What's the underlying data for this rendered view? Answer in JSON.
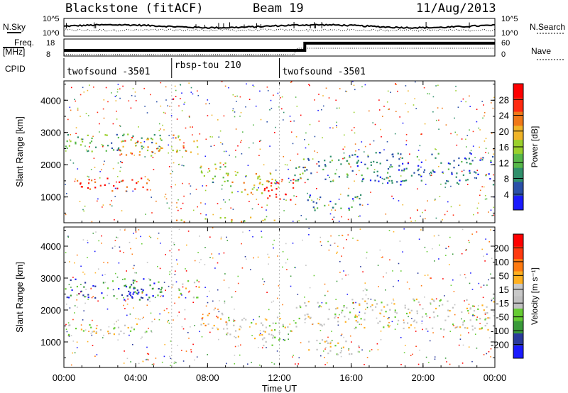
{
  "header": {
    "title": "Blackstone (fitACF)",
    "beam": "Beam 19",
    "date": "11/Aug/2013"
  },
  "colors": {
    "power_scale": [
      "#1a1aff",
      "#2a50a8",
      "#2f8f6b",
      "#57b84a",
      "#9ad02c",
      "#f0b428",
      "#f07818",
      "#ff2a10",
      "#ff0000"
    ],
    "velocity_scale": [
      "#1a1aff",
      "#2a3a9c",
      "#3a9a3a",
      "#66cc33",
      "#c0c0c0",
      "#c8c8c8",
      "#ffb020",
      "#ff7a10",
      "#ff3a10",
      "#ff0000"
    ]
  },
  "chart_data": [
    {
      "type": "line",
      "panel": "noise",
      "ylabel_left": "N.Sky",
      "ylabel_right": "N.Search",
      "yticks_left": [
        "10^5",
        "10^0"
      ],
      "yticks_right": [
        "10^5",
        "10^0"
      ]
    },
    {
      "type": "line",
      "panel": "frequency-nave",
      "ylabel_left": "Freq. [MHz]",
      "ylabel_right": "Nave",
      "yticks_left": [
        "18",
        "8"
      ],
      "yticks_right": [
        "60",
        "0"
      ],
      "series": [
        {
          "name": "Freq.",
          "x": [
            "00:00",
            "00:35",
            "01:10",
            "01:45",
            "02:20",
            "02:55",
            "03:30",
            "04:05",
            "04:40",
            "05:15",
            "05:50",
            "06:25",
            "07:00",
            "07:35",
            "08:10",
            "08:45",
            "09:20",
            "09:55",
            "10:30",
            "11:05",
            "11:40",
            "12:15",
            "12:50",
            "13:25",
            "14:00",
            "14:35",
            "15:10",
            "15:45",
            "16:20",
            "16:55",
            "17:30",
            "18:05",
            "18:40",
            "19:15",
            "19:50",
            "20:25",
            "21:00",
            "21:35",
            "22:10",
            "22:45",
            "23:20",
            "23:55"
          ],
          "values": [
            10.5,
            10.5,
            10.5,
            10.5,
            10.5,
            10.5,
            10.5,
            10.5,
            10.5,
            10.5,
            10.5,
            10.5,
            10.5,
            10.5,
            10.5,
            10.5,
            10.5,
            10.5,
            10.5,
            10.5,
            10.5,
            10.5,
            10.5,
            16.8,
            16.8,
            16.8,
            16.8,
            16.8,
            16.8,
            16.8,
            16.8,
            16.8,
            16.8,
            16.8,
            16.8,
            16.8,
            16.8,
            16.8,
            16.8,
            16.8,
            16.8,
            16.8
          ]
        }
      ]
    },
    {
      "type": "table",
      "panel": "cpid",
      "label": "CPID",
      "segments": [
        {
          "start": "00:00",
          "end": "06:00",
          "label": "twofsound -3501"
        },
        {
          "start": "06:00",
          "end": "12:00",
          "label": "rbsp-tou 210"
        },
        {
          "start": "12:00",
          "end": "24:00",
          "label": "twofsound -3501"
        }
      ]
    },
    {
      "type": "heatmap",
      "panel": "power",
      "ylabel": "Slant Range [km]",
      "yticks": [
        "1000",
        "2000",
        "3000",
        "4000"
      ],
      "ylim": [
        200,
        4600
      ],
      "colorbar": {
        "label": "Power [dB]",
        "ticks": [
          "28",
          "24",
          "20",
          "16",
          "12",
          "8",
          "4"
        ],
        "range": [
          0,
          32
        ]
      },
      "echo_regions": [
        {
          "t": [
            0.0,
            4.8
          ],
          "r": [
            1200,
            1600
          ],
          "value": 26
        },
        {
          "t": [
            0.0,
            5.5
          ],
          "r": [
            2400,
            3000
          ],
          "value": 12
        },
        {
          "t": [
            3.0,
            5.5
          ],
          "r": [
            2300,
            2900
          ],
          "value": 22
        },
        {
          "t": [
            6.0,
            7.5
          ],
          "r": [
            2400,
            3000
          ],
          "value": 20
        },
        {
          "t": [
            7.5,
            9.0
          ],
          "r": [
            1400,
            2100
          ],
          "value": 14
        },
        {
          "t": [
            9.0,
            12.0
          ],
          "r": [
            1100,
            1800
          ],
          "value": 18
        },
        {
          "t": [
            11.0,
            12.8
          ],
          "r": [
            900,
            1600
          ],
          "value": 28
        },
        {
          "t": [
            12.8,
            16.0
          ],
          "r": [
            1500,
            2300
          ],
          "value": 10
        },
        {
          "t": [
            13.5,
            16.5
          ],
          "r": [
            600,
            1100
          ],
          "value": 8
        },
        {
          "t": [
            16.0,
            24.0
          ],
          "r": [
            1400,
            2400
          ],
          "value": 6
        },
        {
          "t": [
            6.0,
            12.0
          ],
          "r": [
            200,
            400
          ],
          "value": 20
        }
      ]
    },
    {
      "type": "heatmap",
      "panel": "velocity",
      "ylabel": "Slant Range [km]",
      "xlabel": "Time UT",
      "xticks": [
        "00:00",
        "04:00",
        "08:00",
        "12:00",
        "16:00",
        "20:00",
        "00:00"
      ],
      "yticks": [
        "1000",
        "2000",
        "3000",
        "4000"
      ],
      "ylim": [
        200,
        4600
      ],
      "colorbar": {
        "label": "Velocity [m s⁻¹]",
        "ticks": [
          "200",
          "100",
          "50",
          "15",
          "-15",
          "-50",
          "-100",
          "-200"
        ],
        "range": [
          -250,
          250
        ]
      },
      "echo_regions": [
        {
          "t": [
            0.0,
            4.8
          ],
          "r": [
            1200,
            1600
          ],
          "value": 0
        },
        {
          "t": [
            0.0,
            5.5
          ],
          "r": [
            2400,
            3000
          ],
          "value": -150
        },
        {
          "t": [
            3.0,
            5.5
          ],
          "r": [
            2300,
            2900
          ],
          "value": -200
        },
        {
          "t": [
            6.0,
            7.5
          ],
          "r": [
            2400,
            3000
          ],
          "value": 0
        },
        {
          "t": [
            7.5,
            9.0
          ],
          "r": [
            1400,
            2100
          ],
          "value": 60
        },
        {
          "t": [
            9.0,
            12.0
          ],
          "r": [
            1100,
            1800
          ],
          "value": 0
        },
        {
          "t": [
            11.0,
            12.8
          ],
          "r": [
            900,
            1600
          ],
          "value": 0
        },
        {
          "t": [
            12.8,
            16.0
          ],
          "r": [
            1500,
            2300
          ],
          "value": 0
        },
        {
          "t": [
            13.5,
            16.5
          ],
          "r": [
            600,
            1100
          ],
          "value": 0
        },
        {
          "t": [
            16.0,
            24.0
          ],
          "r": [
            1400,
            2400
          ],
          "value": 0
        }
      ]
    }
  ]
}
